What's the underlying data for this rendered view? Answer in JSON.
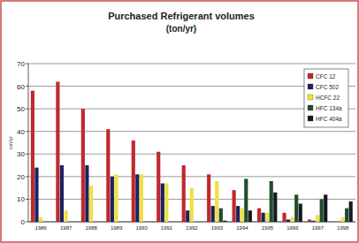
{
  "chart_data": {
    "type": "bar",
    "title": "Purchased Refrigerant volumes",
    "subtitle": "(ton/yr)",
    "y_label": "ton/yr",
    "categories": [
      "1986",
      "1987",
      "1988",
      "1989",
      "1990",
      "1991",
      "1992",
      "1993",
      "1994",
      "1995",
      "1996",
      "1997",
      "1998"
    ],
    "series": [
      {
        "name": "CFC 12",
        "color": "#c0282d",
        "values": [
          58,
          62,
          50,
          41,
          36,
          31,
          25,
          21,
          14,
          6,
          4,
          1,
          0
        ]
      },
      {
        "name": "CFC 502",
        "color": "#1c2160",
        "values": [
          24,
          25,
          25,
          20,
          21,
          17,
          5,
          7,
          7,
          4,
          1,
          0.5,
          0
        ]
      },
      {
        "name": "HCFC 22",
        "color": "#efe043",
        "values": [
          2,
          5,
          16,
          21,
          21,
          17,
          15,
          18,
          6,
          4,
          2,
          3,
          2
        ]
      },
      {
        "name": "HFC 134a",
        "color": "#1f4d2c",
        "values": [
          0,
          0,
          0,
          0,
          0,
          0,
          0,
          6,
          19,
          18,
          12,
          10,
          6
        ]
      },
      {
        "name": "HFC 404a",
        "color": "#121a22",
        "values": [
          0,
          0,
          0,
          0,
          0,
          0,
          0,
          0.5,
          5,
          13,
          8,
          12,
          9
        ]
      }
    ],
    "ylim": [
      0,
      70
    ],
    "yticks": [
      0,
      10,
      20,
      30,
      40,
      50,
      60,
      70
    ],
    "grid": true,
    "legend": "top-right"
  }
}
